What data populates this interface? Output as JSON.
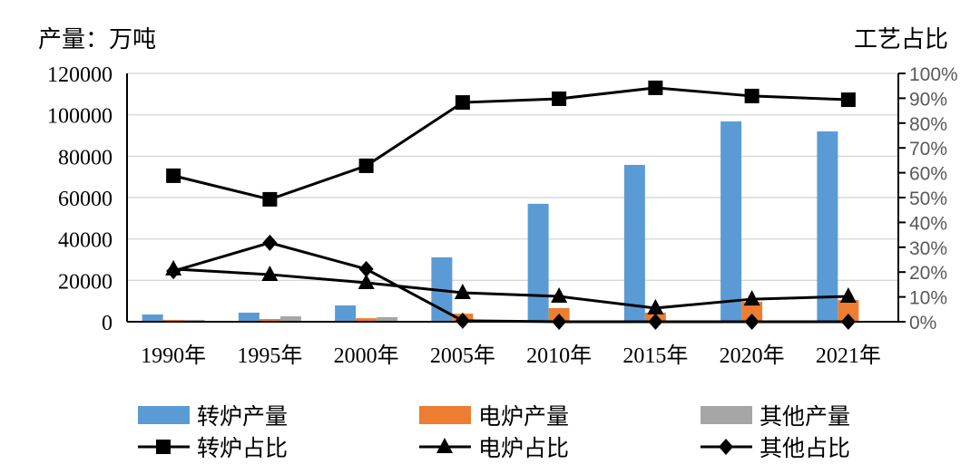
{
  "chart_data": {
    "type": "bar+line",
    "left_axis_title": "产量：万吨",
    "right_axis_title": "工艺占比",
    "categories": [
      "1990年",
      "1995年",
      "2000年",
      "2005年",
      "2010年",
      "2015年",
      "2020年",
      "2021年"
    ],
    "ylim": [
      0,
      120000
    ],
    "yticks": [
      "0",
      "20000",
      "40000",
      "60000",
      "80000",
      "100000",
      "120000"
    ],
    "y2lim": [
      0,
      100
    ],
    "y2ticks": [
      "0%",
      "10%",
      "20%",
      "30%",
      "40%",
      "50%",
      "60%",
      "70%",
      "80%",
      "90%",
      "100%"
    ],
    "grid": true,
    "legend_placement": "bottom",
    "bar_series": [
      {
        "name": "转炉产量",
        "color": "#5b9bd5",
        "values": [
          3500,
          4400,
          7900,
          31100,
          57000,
          75800,
          96800,
          92000
        ]
      },
      {
        "name": "电炉产量",
        "color": "#ed7d31",
        "values": [
          900,
          1300,
          1700,
          3900,
          6600,
          4400,
          9600,
          10500
        ]
      },
      {
        "name": "其他产量",
        "color": "#a5a5a5",
        "values": [
          900,
          2600,
          2200,
          0,
          0,
          0,
          0,
          0
        ]
      }
    ],
    "line_series": [
      {
        "name": "转炉占比",
        "marker": "square",
        "color": "#000000",
        "values": [
          58.8,
          49.3,
          62.8,
          88.3,
          89.8,
          94.2,
          90.9,
          89.4
        ]
      },
      {
        "name": "电炉占比",
        "marker": "triangle",
        "color": "#000000",
        "values": [
          21.2,
          19.0,
          15.7,
          11.7,
          10.2,
          5.5,
          9.1,
          10.2
        ]
      },
      {
        "name": "其他占比",
        "marker": "diamond",
        "color": "#000000",
        "values": [
          20.4,
          31.8,
          21.2,
          0.4,
          0,
          0,
          0,
          0
        ]
      }
    ]
  }
}
